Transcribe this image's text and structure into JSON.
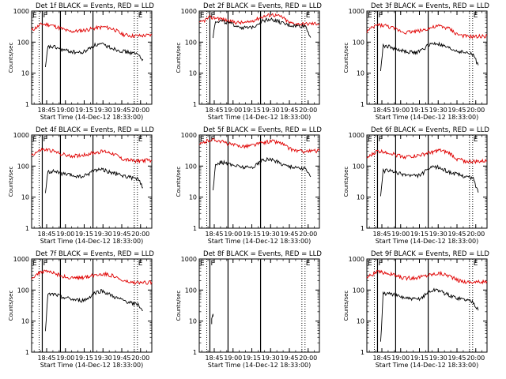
{
  "page": {
    "background": "#ffffff"
  },
  "style": {
    "events_color": "#000000",
    "lld_color": "#e00000",
    "axis_color": "#000000"
  },
  "common": {
    "ylabel": "Counts/sec",
    "xlabel": "Start Time (14-Dec-12 18:33:00)",
    "y_ticks": [
      "1",
      "10",
      "100",
      "1000"
    ],
    "x_ticks": [
      "18:45",
      "19:00",
      "19:15",
      "19:30",
      "19:45",
      "20:00"
    ],
    "markers": {
      "E_label": "E",
      "F_label": "F"
    }
  },
  "chart_data": [
    {
      "type": "line",
      "title": "Det 1f BLACK = Events, RED = LLD",
      "xlabel": "Start Time (14-Dec-12 18:33:00)",
      "ylabel": "Counts/sec",
      "x_unit": "minutes after 18:33:00",
      "ylim": [
        1,
        1000
      ],
      "y_scale": "log",
      "xlim": [
        0,
        96
      ],
      "dotted_lines": [
        6,
        47
      ],
      "solid_lines": [
        23
      ],
      "series": [
        {
          "name": "LLD",
          "x": [
            0,
            8,
            15,
            22,
            30,
            38,
            44,
            50,
            58,
            66,
            72,
            80,
            88,
            96
          ],
          "values": [
            240,
            380,
            360,
            290,
            220,
            230,
            250,
            280,
            310,
            260,
            180,
            160,
            160,
            170
          ]
        },
        {
          "name": "Events",
          "x": [
            11,
            13,
            18,
            26,
            34,
            40,
            44,
            50,
            56,
            62,
            68,
            74,
            80,
            85,
            89
          ],
          "values": [
            14,
            70,
            70,
            55,
            48,
            45,
            55,
            80,
            85,
            70,
            58,
            50,
            45,
            40,
            28
          ]
        }
      ]
    },
    {
      "type": "line",
      "title": "Det 2f BLACK = Events, RED = LLD",
      "xlabel": "Start Time (14-Dec-12 18:33:00)",
      "ylabel": "Counts/sec",
      "x_unit": "minutes after 18:33:00",
      "ylim": [
        1,
        1000
      ],
      "y_scale": "log",
      "xlim": [
        0,
        96
      ],
      "dotted_lines": [
        6,
        47
      ],
      "solid_lines": [
        23
      ],
      "series": [
        {
          "name": "LLD",
          "x": [
            0,
            8,
            15,
            22,
            30,
            38,
            44,
            50,
            58,
            66,
            72,
            80,
            88,
            96
          ],
          "values": [
            400,
            620,
            600,
            500,
            430,
            420,
            520,
            650,
            780,
            650,
            420,
            380,
            390,
            400
          ]
        },
        {
          "name": "Events",
          "x": [
            11,
            13,
            18,
            26,
            34,
            40,
            44,
            50,
            56,
            62,
            68,
            74,
            80,
            85,
            89
          ],
          "values": [
            150,
            480,
            480,
            380,
            300,
            280,
            330,
            480,
            560,
            480,
            380,
            340,
            330,
            330,
            140
          ]
        }
      ]
    },
    {
      "type": "line",
      "title": "Det 3f BLACK = Events, RED = LLD",
      "xlabel": "Start Time (14-Dec-12 18:33:00)",
      "ylabel": "Counts/sec",
      "x_unit": "minutes after 18:33:00",
      "ylim": [
        1,
        1000
      ],
      "y_scale": "log",
      "xlim": [
        0,
        96
      ],
      "dotted_lines": [
        6,
        47
      ],
      "solid_lines": [
        23
      ],
      "series": [
        {
          "name": "LLD",
          "x": [
            0,
            8,
            15,
            22,
            30,
            38,
            44,
            50,
            58,
            66,
            72,
            80,
            88,
            96
          ],
          "values": [
            220,
            360,
            340,
            270,
            210,
            220,
            240,
            280,
            330,
            270,
            180,
            150,
            150,
            160
          ]
        },
        {
          "name": "Events",
          "x": [
            11,
            13,
            18,
            26,
            34,
            40,
            44,
            50,
            56,
            62,
            68,
            74,
            80,
            85,
            89
          ],
          "values": [
            12,
            75,
            72,
            55,
            48,
            46,
            56,
            85,
            90,
            72,
            58,
            50,
            45,
            40,
            18
          ]
        }
      ]
    },
    {
      "type": "line",
      "title": "Det 4f BLACK = Events, RED = LLD",
      "xlabel": "Start Time (14-Dec-12 18:33:00)",
      "ylabel": "Counts/sec",
      "x_unit": "minutes after 18:33:00",
      "ylim": [
        1,
        1000
      ],
      "y_scale": "log",
      "xlim": [
        0,
        96
      ],
      "dotted_lines": [
        6,
        47
      ],
      "solid_lines": [
        23
      ],
      "series": [
        {
          "name": "LLD",
          "x": [
            0,
            8,
            15,
            22,
            30,
            38,
            44,
            50,
            58,
            66,
            72,
            80,
            88,
            96
          ],
          "values": [
            230,
            340,
            320,
            260,
            210,
            220,
            240,
            270,
            300,
            250,
            170,
            150,
            150,
            155
          ]
        },
        {
          "name": "Events",
          "x": [
            11,
            13,
            18,
            26,
            34,
            40,
            44,
            50,
            56,
            62,
            68,
            74,
            80,
            85,
            89
          ],
          "values": [
            13,
            65,
            68,
            55,
            48,
            45,
            52,
            75,
            80,
            65,
            55,
            48,
            42,
            38,
            20
          ]
        }
      ]
    },
    {
      "type": "line",
      "title": "Det 5f BLACK = Events, RED = LLD",
      "xlabel": "Start Time (14-Dec-12 18:33:00)",
      "ylabel": "Counts/sec",
      "x_unit": "minutes after 18:33:00",
      "ylim": [
        1,
        1000
      ],
      "y_scale": "log",
      "xlim": [
        0,
        96
      ],
      "dotted_lines": [
        6,
        47
      ],
      "solid_lines": [
        23
      ],
      "series": [
        {
          "name": "LLD",
          "x": [
            0,
            8,
            15,
            22,
            30,
            38,
            44,
            50,
            58,
            66,
            72,
            80,
            88,
            96
          ],
          "values": [
            480,
            700,
            680,
            540,
            450,
            440,
            480,
            560,
            640,
            540,
            360,
            300,
            300,
            310
          ]
        },
        {
          "name": "Events",
          "x": [
            11,
            13,
            18,
            26,
            34,
            40,
            44,
            50,
            56,
            62,
            68,
            74,
            80,
            85,
            89
          ],
          "values": [
            15,
            120,
            135,
            110,
            95,
            90,
            100,
            150,
            170,
            140,
            110,
            95,
            88,
            80,
            45
          ]
        }
      ]
    },
    {
      "type": "line",
      "title": "Det 6f BLACK = Events, RED = LLD",
      "xlabel": "Start Time (14-Dec-12 18:33:00)",
      "ylabel": "Counts/sec",
      "x_unit": "minutes after 18:33:00",
      "ylim": [
        1,
        1000
      ],
      "y_scale": "log",
      "xlim": [
        0,
        96
      ],
      "dotted_lines": [
        6,
        47
      ],
      "solid_lines": [
        23
      ],
      "series": [
        {
          "name": "LLD",
          "x": [
            0,
            8,
            15,
            22,
            30,
            38,
            44,
            50,
            58,
            66,
            72,
            80,
            88,
            96
          ],
          "values": [
            180,
            300,
            290,
            240,
            200,
            210,
            230,
            270,
            320,
            260,
            170,
            140,
            140,
            145
          ]
        },
        {
          "name": "Events",
          "x": [
            11,
            13,
            18,
            26,
            34,
            40,
            44,
            50,
            56,
            62,
            68,
            74,
            80,
            85,
            89
          ],
          "values": [
            12,
            70,
            72,
            58,
            50,
            48,
            56,
            85,
            95,
            75,
            60,
            52,
            46,
            40,
            14
          ]
        }
      ]
    },
    {
      "type": "line",
      "title": "Det 7f BLACK = Events, RED = LLD",
      "xlabel": "Start Time (14-Dec-12 18:33:00)",
      "ylabel": "Counts/sec",
      "x_unit": "minutes after 18:33:00",
      "ylim": [
        1,
        1000
      ],
      "y_scale": "log",
      "xlim": [
        0,
        96
      ],
      "dotted_lines": [
        6,
        47
      ],
      "solid_lines": [
        23
      ],
      "series": [
        {
          "name": "LLD",
          "x": [
            0,
            8,
            15,
            22,
            30,
            38,
            44,
            50,
            58,
            66,
            72,
            80,
            88,
            96
          ],
          "values": [
            250,
            400,
            380,
            310,
            240,
            250,
            270,
            300,
            340,
            280,
            200,
            170,
            170,
            180
          ]
        },
        {
          "name": "Events",
          "x": [
            11,
            13,
            18,
            26,
            34,
            40,
            44,
            50,
            56,
            62,
            68,
            74,
            80,
            85,
            89
          ],
          "values": [
            5,
            70,
            72,
            58,
            48,
            46,
            50,
            80,
            95,
            72,
            55,
            45,
            38,
            34,
            22
          ]
        }
      ]
    },
    {
      "type": "line",
      "title": "Det 8f BLACK = Events, RED = LLD",
      "xlabel": "Start Time (14-Dec-12 18:33:00)",
      "ylabel": "Counts/sec",
      "x_unit": "minutes after 18:33:00",
      "ylim": [
        1,
        1000
      ],
      "y_scale": "log",
      "xlim": [
        0,
        96
      ],
      "dotted_lines": [
        6,
        47
      ],
      "solid_lines": [
        23
      ],
      "series": [
        {
          "name": "Events",
          "x": [
            10,
            10,
            11,
            11
          ],
          "values": [
            8,
            12,
            17,
            14
          ]
        }
      ]
    },
    {
      "type": "line",
      "title": "Det 9f BLACK = Events, RED = LLD",
      "xlabel": "Start Time (14-Dec-12 18:33:00)",
      "ylabel": "Counts/sec",
      "x_unit": "minutes after 18:33:00",
      "ylim": [
        1,
        1000
      ],
      "y_scale": "log",
      "xlim": [
        0,
        96
      ],
      "dotted_lines": [
        6,
        47
      ],
      "solid_lines": [
        23
      ],
      "series": [
        {
          "name": "LLD",
          "x": [
            0,
            8,
            15,
            22,
            30,
            38,
            44,
            50,
            58,
            66,
            72,
            80,
            88,
            96
          ],
          "values": [
            260,
            380,
            360,
            300,
            240,
            250,
            270,
            310,
            350,
            290,
            210,
            180,
            180,
            190
          ]
        },
        {
          "name": "Events",
          "x": [
            11,
            13,
            18,
            26,
            34,
            40,
            44,
            50,
            56,
            62,
            68,
            74,
            80,
            85,
            89
          ],
          "values": [
            2,
            75,
            78,
            62,
            52,
            50,
            58,
            90,
            105,
            80,
            62,
            54,
            48,
            42,
            22
          ]
        }
      ]
    }
  ]
}
